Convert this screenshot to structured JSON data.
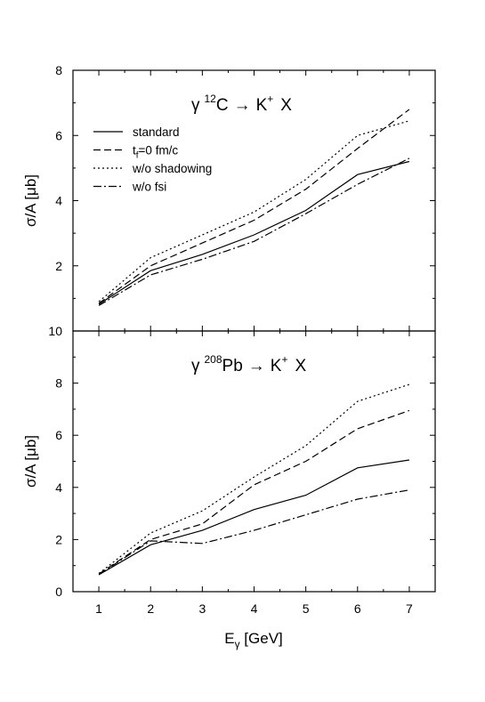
{
  "chart_data": [
    {
      "type": "line",
      "title_parts": {
        "gamma": "γ",
        "mass": "12",
        "nucleus": "C",
        "arrow": "→",
        "product": "K",
        "charge": "+",
        "rest": "X"
      },
      "ylabel": "σ/A [μb]",
      "xlim": [
        0.5,
        7.5
      ],
      "ylim": [
        0,
        8
      ],
      "yticks": [
        2,
        4,
        6,
        8
      ],
      "xticks": [
        1,
        2,
        3,
        4,
        5,
        6,
        7
      ],
      "show_xtick_labels": false,
      "legend_position": "top-left",
      "series": [
        {
          "name": "standard",
          "style": "solid",
          "x": [
            1,
            2,
            3,
            4,
            5,
            6,
            7
          ],
          "y": [
            0.82,
            1.85,
            2.35,
            2.95,
            3.7,
            4.8,
            5.2
          ]
        },
        {
          "name_parts": {
            "t": "t",
            "sub": "f",
            "rest": "=0 fm/c"
          },
          "style": "dashed",
          "x": [
            1,
            2,
            3,
            4,
            5,
            6,
            7
          ],
          "y": [
            0.85,
            2.0,
            2.7,
            3.4,
            4.35,
            5.6,
            6.8
          ]
        },
        {
          "name": "w/o shadowing",
          "style": "dotted",
          "x": [
            1,
            2,
            3,
            4,
            5,
            6,
            7
          ],
          "y": [
            0.9,
            2.25,
            2.95,
            3.65,
            4.65,
            6.0,
            6.45
          ]
        },
        {
          "name": "w/o fsi",
          "style": "dashdot",
          "x": [
            1,
            2,
            3,
            4,
            5,
            6,
            7
          ],
          "y": [
            0.78,
            1.72,
            2.2,
            2.75,
            3.6,
            4.5,
            5.3
          ]
        }
      ]
    },
    {
      "type": "line",
      "title_parts": {
        "gamma": "γ",
        "mass": "208",
        "nucleus": "Pb",
        "arrow": "→",
        "product": "K",
        "charge": "+",
        "rest": "X"
      },
      "ylabel": "σ/A [μb]",
      "xlabel_parts": {
        "main": "E",
        "sub": "γ",
        "rest": " [GeV]"
      },
      "xlim": [
        0.5,
        7.5
      ],
      "ylim": [
        0,
        10
      ],
      "yticks": [
        0,
        2,
        4,
        6,
        8,
        10
      ],
      "xticks": [
        1,
        2,
        3,
        4,
        5,
        6,
        7
      ],
      "show_xtick_labels": true,
      "series": [
        {
          "name": "standard",
          "style": "solid",
          "x": [
            1,
            2,
            3,
            4,
            5,
            6,
            7
          ],
          "y": [
            0.65,
            1.8,
            2.35,
            3.15,
            3.7,
            4.75,
            5.05
          ]
        },
        {
          "name": "t_f=0 fm/c",
          "style": "dashed",
          "x": [
            1,
            2,
            3,
            4,
            5,
            6,
            7
          ],
          "y": [
            0.68,
            2.0,
            2.6,
            4.1,
            5.0,
            6.25,
            6.95
          ]
        },
        {
          "name": "w/o shadowing",
          "style": "dotted",
          "x": [
            1,
            2,
            3,
            4,
            5,
            6,
            7
          ],
          "y": [
            0.7,
            2.25,
            3.1,
            4.4,
            5.6,
            7.3,
            7.95
          ]
        },
        {
          "name": "w/o fsi",
          "style": "dashdot",
          "x": [
            1,
            2,
            3,
            4,
            5,
            6,
            7
          ],
          "y": [
            0.66,
            1.95,
            1.85,
            2.35,
            2.95,
            3.55,
            3.9
          ]
        }
      ]
    }
  ]
}
